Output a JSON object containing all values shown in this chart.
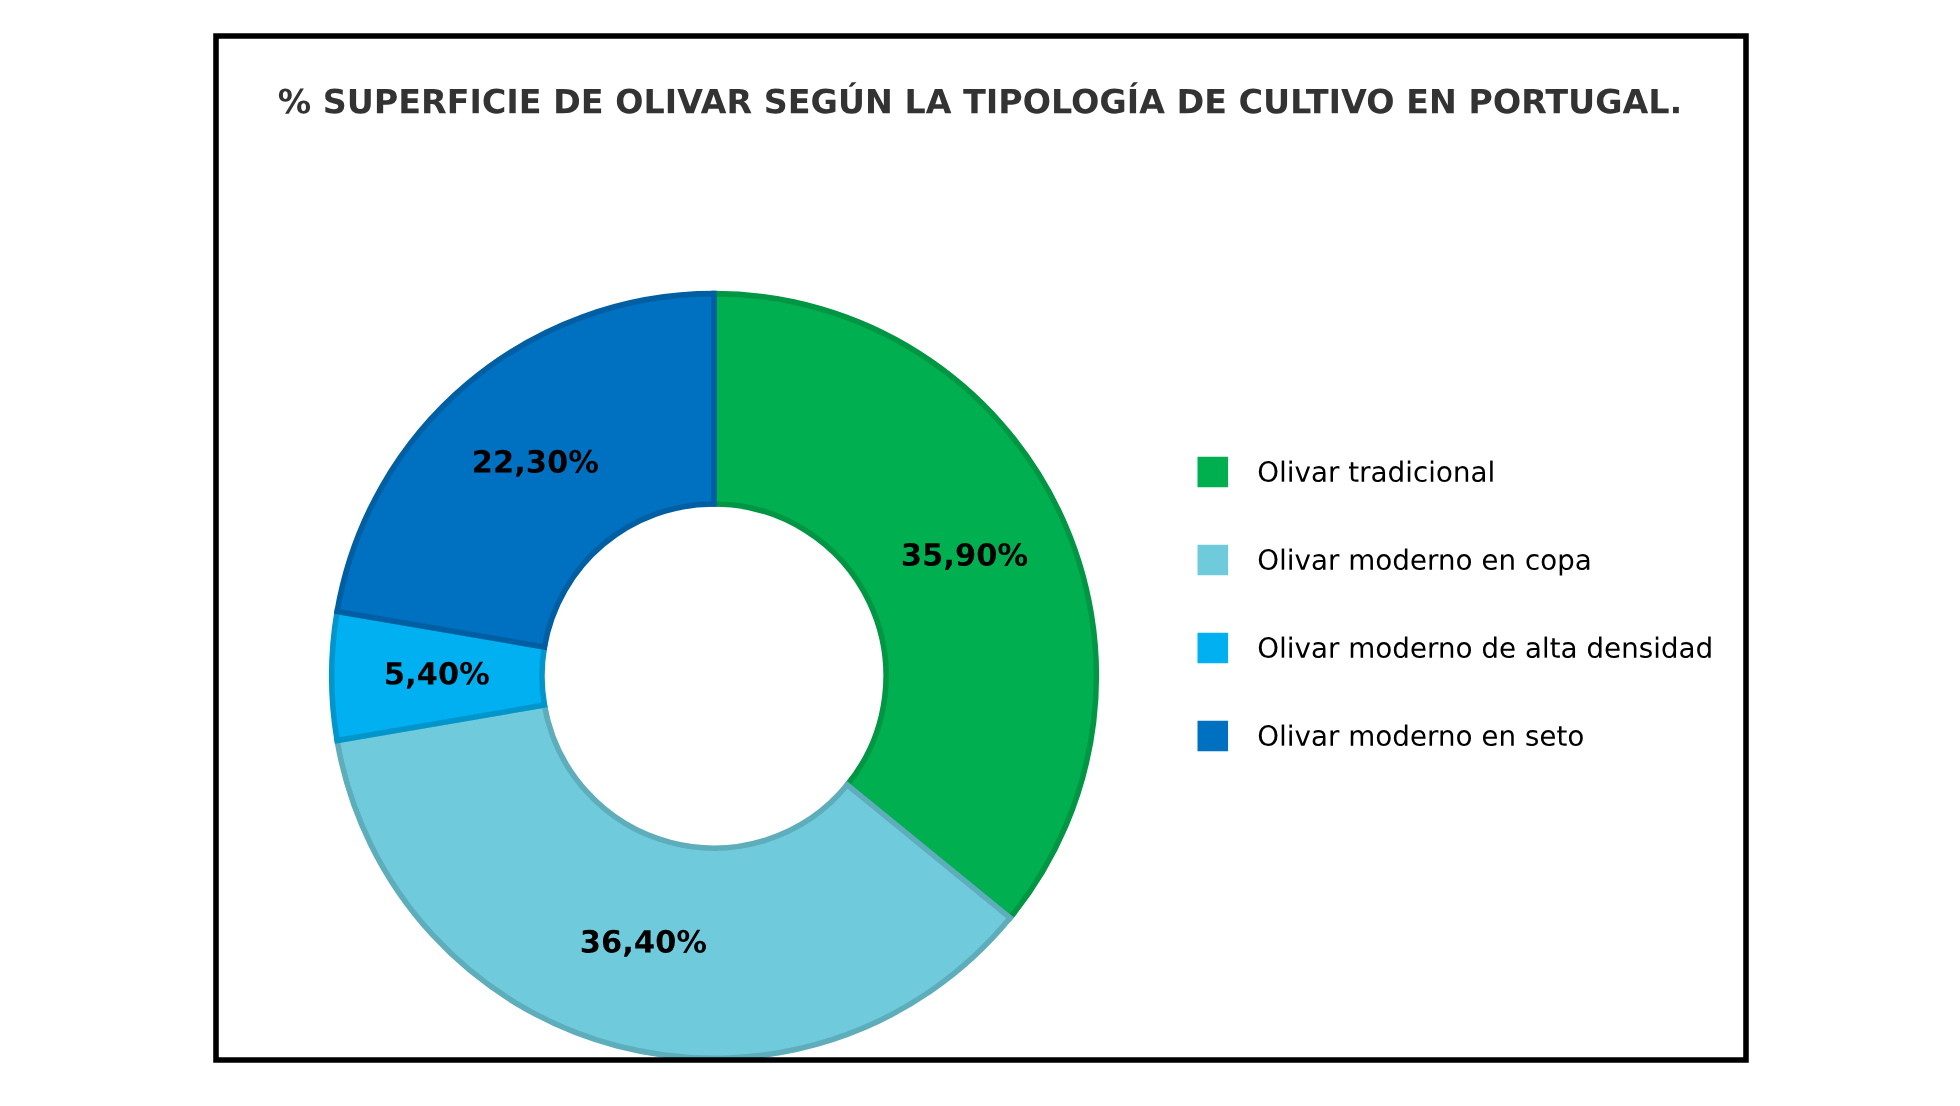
{
  "chart_data": {
    "type": "donut",
    "title": "% SUPERFICIE DE OLIVAR SEGÚN LA TIPOLOGÍA DE CULTIVO EN PORTUGAL.",
    "categories": [
      "Olivar tradicional",
      "Olivar moderno en copa",
      "Olivar moderno de alta densidad",
      "Olivar moderno en seto"
    ],
    "values": [
      35.9,
      36.4,
      5.4,
      22.3
    ],
    "colors": [
      "#00b050",
      "#6fcbdc",
      "#00b0f0",
      "#0070c0"
    ],
    "value_labels": [
      "35,90%",
      "36,40%",
      "5,40%",
      "22,30%"
    ],
    "legend": "right"
  }
}
